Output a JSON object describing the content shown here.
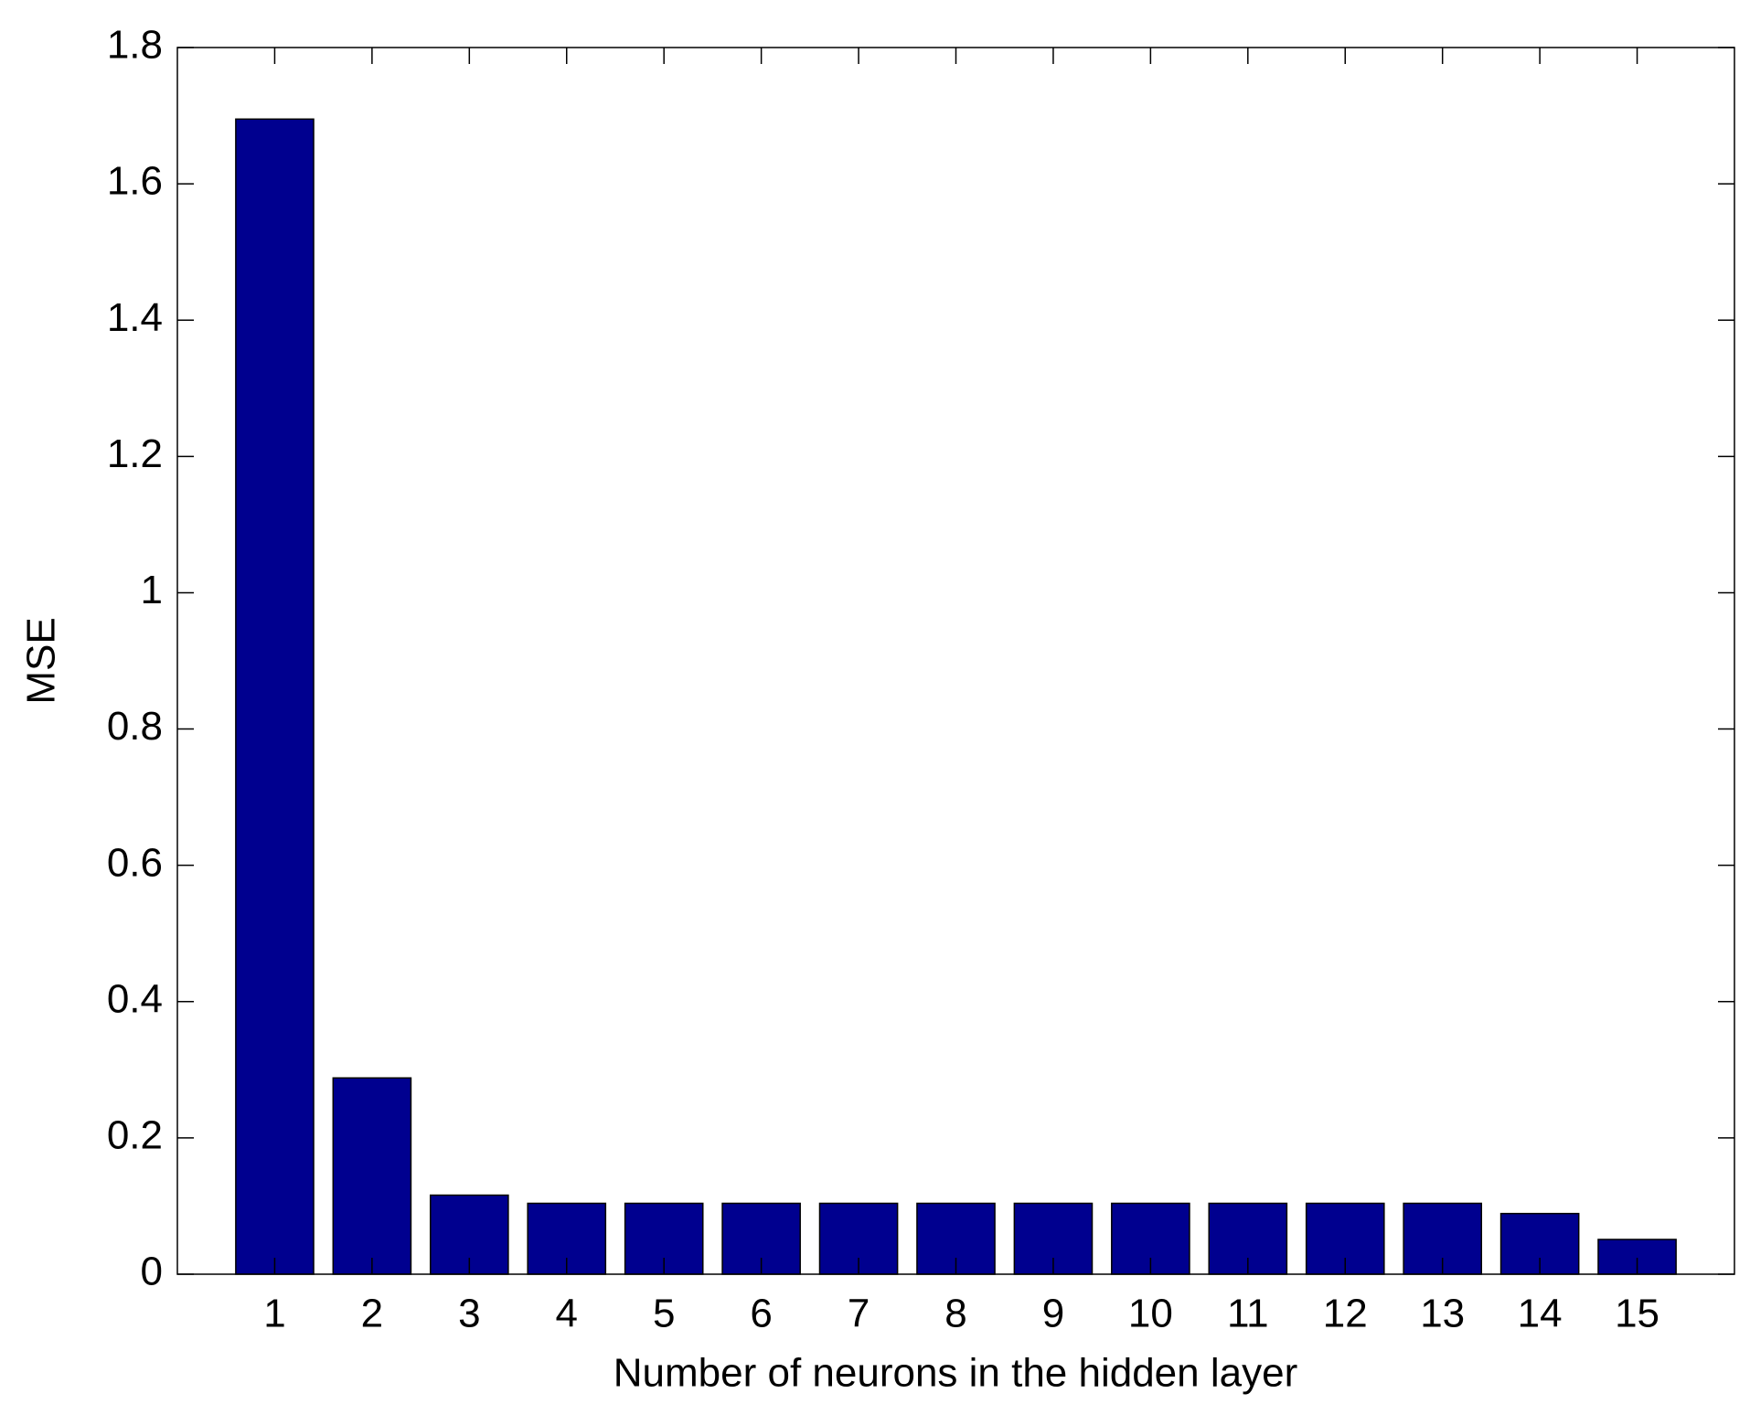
{
  "chart_data": {
    "type": "bar",
    "xlabel": "Number of neurons in the hidden layer",
    "ylabel": "MSE",
    "x": [
      1,
      2,
      3,
      4,
      5,
      6,
      7,
      8,
      9,
      10,
      11,
      12,
      13,
      14,
      15
    ],
    "values": [
      1.695,
      0.288,
      0.116,
      0.104,
      0.104,
      0.104,
      0.104,
      0.104,
      0.104,
      0.104,
      0.104,
      0.104,
      0.104,
      0.089,
      0.051
    ],
    "color": "#00008f",
    "xlim": [
      0,
      16
    ],
    "ylim": [
      0,
      1.8
    ],
    "xticks": [
      1,
      2,
      3,
      4,
      5,
      6,
      7,
      8,
      9,
      10,
      11,
      12,
      13,
      14,
      15
    ],
    "yticks": [
      0,
      0.2,
      0.4,
      0.6,
      0.8,
      1,
      1.2,
      1.4,
      1.6,
      1.8
    ],
    "box": true
  }
}
